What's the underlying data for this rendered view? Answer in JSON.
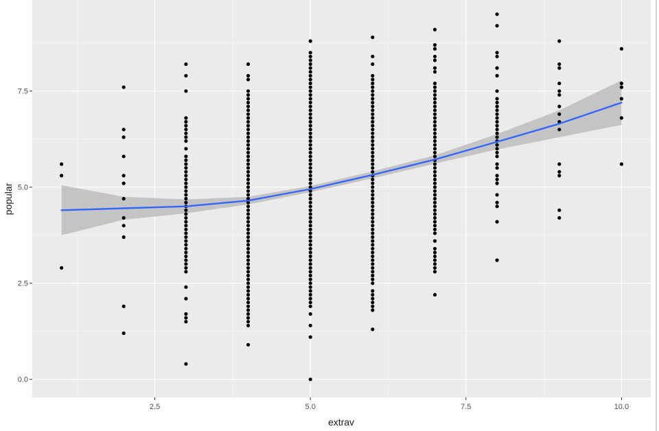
{
  "chart_data": {
    "type": "scatter",
    "title": "",
    "xlabel": "extrav",
    "ylabel": "popular",
    "xlim": [
      0.53,
      10.47
    ],
    "ylim": [
      -0.47,
      9.87
    ],
    "x_ticks": [
      2.5,
      5.0,
      7.5,
      10.0
    ],
    "x_tick_labels": [
      "2.5",
      "5.0",
      "7.5",
      "10.0"
    ],
    "y_ticks": [
      0.0,
      2.5,
      5.0,
      7.5
    ],
    "y_tick_labels": [
      "0.0",
      "2.5",
      "5.0",
      "7.5"
    ],
    "grid": true,
    "panel_color": "#ebebeb",
    "point_color": "#000000",
    "smooth_color": "#3366ff",
    "ribbon_color": "#bdbdbd",
    "points": [
      {
        "x": 1,
        "y": [
          5.6,
          5.3,
          2.9
        ]
      },
      {
        "x": 2,
        "y": [
          7.6,
          6.5,
          6.3,
          5.8,
          5.3,
          5.1,
          4.7,
          4.2,
          4.0,
          3.7,
          1.9,
          1.2
        ]
      },
      {
        "x": 3,
        "y": [
          8.2,
          7.9,
          7.5,
          6.8,
          6.7,
          6.6,
          6.5,
          6.4,
          6.3,
          6.2,
          6.0,
          5.8,
          5.7,
          5.6,
          5.5,
          5.4,
          5.3,
          5.2,
          5.1,
          5.0,
          4.9,
          4.8,
          4.7,
          4.6,
          4.5,
          4.4,
          4.3,
          4.2,
          4.1,
          4.0,
          3.9,
          3.8,
          3.7,
          3.6,
          3.5,
          3.4,
          3.3,
          3.2,
          3.1,
          3.0,
          2.9,
          2.8,
          2.4,
          2.1,
          1.7,
          1.6,
          1.5,
          0.4
        ]
      },
      {
        "x": 4,
        "y": [
          8.2,
          7.9,
          7.8,
          7.5,
          7.4,
          7.3,
          7.2,
          7.1,
          7.0,
          6.9,
          6.8,
          6.7,
          6.6,
          6.5,
          6.4,
          6.3,
          6.2,
          6.1,
          6.0,
          5.9,
          5.8,
          5.7,
          5.6,
          5.5,
          5.4,
          5.3,
          5.2,
          5.1,
          5.0,
          4.9,
          4.8,
          4.7,
          4.6,
          4.5,
          4.4,
          4.3,
          4.2,
          4.1,
          4.0,
          3.9,
          3.8,
          3.7,
          3.6,
          3.5,
          3.4,
          3.3,
          3.2,
          3.1,
          3.0,
          2.9,
          2.8,
          2.7,
          2.6,
          2.5,
          2.4,
          2.3,
          2.2,
          2.1,
          2.0,
          1.9,
          1.8,
          1.7,
          1.6,
          1.5,
          1.4,
          0.9
        ]
      },
      {
        "x": 5,
        "y": [
          8.8,
          8.5,
          8.4,
          8.3,
          8.2,
          8.1,
          8.0,
          7.9,
          7.8,
          7.7,
          7.6,
          7.5,
          7.4,
          7.3,
          7.2,
          7.1,
          7.0,
          6.9,
          6.8,
          6.7,
          6.6,
          6.5,
          6.4,
          6.3,
          6.2,
          6.1,
          6.0,
          5.9,
          5.8,
          5.7,
          5.6,
          5.5,
          5.4,
          5.3,
          5.2,
          5.1,
          5.0,
          4.9,
          4.8,
          4.7,
          4.6,
          4.5,
          4.4,
          4.3,
          4.2,
          4.1,
          4.0,
          3.9,
          3.8,
          3.7,
          3.6,
          3.5,
          3.4,
          3.3,
          3.2,
          3.1,
          3.0,
          2.9,
          2.8,
          2.7,
          2.6,
          2.5,
          2.4,
          2.3,
          2.2,
          2.1,
          2.0,
          1.9,
          1.7,
          1.4,
          1.1,
          0.0
        ]
      },
      {
        "x": 6,
        "y": [
          8.9,
          8.4,
          8.2,
          7.9,
          7.8,
          7.7,
          7.6,
          7.5,
          7.4,
          7.3,
          7.2,
          7.1,
          7.0,
          6.9,
          6.8,
          6.7,
          6.6,
          6.5,
          6.4,
          6.3,
          6.2,
          6.1,
          6.0,
          5.9,
          5.8,
          5.7,
          5.6,
          5.5,
          5.4,
          5.3,
          5.2,
          5.1,
          5.0,
          4.9,
          4.8,
          4.7,
          4.6,
          4.5,
          4.4,
          4.3,
          4.2,
          4.1,
          4.0,
          3.9,
          3.8,
          3.7,
          3.6,
          3.5,
          3.4,
          3.3,
          3.2,
          3.1,
          3.0,
          2.9,
          2.8,
          2.7,
          2.6,
          2.5,
          2.3,
          2.2,
          2.1,
          2.0,
          1.9,
          1.8,
          1.3
        ]
      },
      {
        "x": 7,
        "y": [
          9.1,
          8.7,
          8.6,
          8.4,
          8.3,
          8.1,
          8.0,
          7.7,
          7.6,
          7.5,
          7.4,
          7.3,
          7.2,
          7.1,
          7.0,
          6.9,
          6.8,
          6.7,
          6.6,
          6.5,
          6.4,
          6.3,
          6.2,
          6.1,
          6.0,
          5.9,
          5.8,
          5.7,
          5.6,
          5.5,
          5.4,
          5.3,
          5.2,
          5.1,
          5.0,
          4.9,
          4.8,
          4.7,
          4.6,
          4.5,
          4.4,
          4.3,
          4.2,
          4.1,
          4.0,
          3.9,
          3.8,
          3.6,
          3.4,
          3.3,
          3.2,
          3.1,
          3.0,
          2.9,
          2.8,
          2.2
        ]
      },
      {
        "x": 8,
        "y": [
          9.5,
          9.2,
          8.5,
          8.4,
          8.1,
          7.9,
          7.5,
          7.3,
          7.2,
          7.1,
          7.0,
          6.9,
          6.8,
          6.7,
          6.6,
          6.5,
          6.4,
          6.3,
          6.2,
          6.1,
          6.0,
          5.9,
          5.8,
          5.6,
          5.5,
          5.3,
          5.2,
          5.1,
          4.8,
          4.6,
          4.5,
          4.1,
          3.1
        ]
      },
      {
        "x": 9,
        "y": [
          8.8,
          8.2,
          8.1,
          7.7,
          7.5,
          7.4,
          7.1,
          6.9,
          6.7,
          6.5,
          5.6,
          5.4,
          5.3,
          4.4,
          4.2
        ]
      },
      {
        "x": 10,
        "y": [
          8.6,
          7.7,
          7.6,
          7.3,
          6.8,
          5.6
        ]
      }
    ],
    "smooth_line": {
      "x": [
        1,
        2,
        3,
        4,
        5,
        6,
        7,
        8,
        9,
        10
      ],
      "y": [
        4.4,
        4.45,
        4.5,
        4.65,
        4.95,
        5.32,
        5.72,
        6.18,
        6.65,
        7.2
      ]
    },
    "smooth_band": {
      "upper": [
        5.05,
        4.75,
        4.68,
        4.75,
        5.03,
        5.41,
        5.83,
        6.38,
        7.0,
        7.78
      ],
      "lower": [
        3.75,
        4.15,
        4.32,
        4.55,
        4.87,
        5.23,
        5.61,
        5.98,
        6.3,
        6.62
      ]
    }
  }
}
